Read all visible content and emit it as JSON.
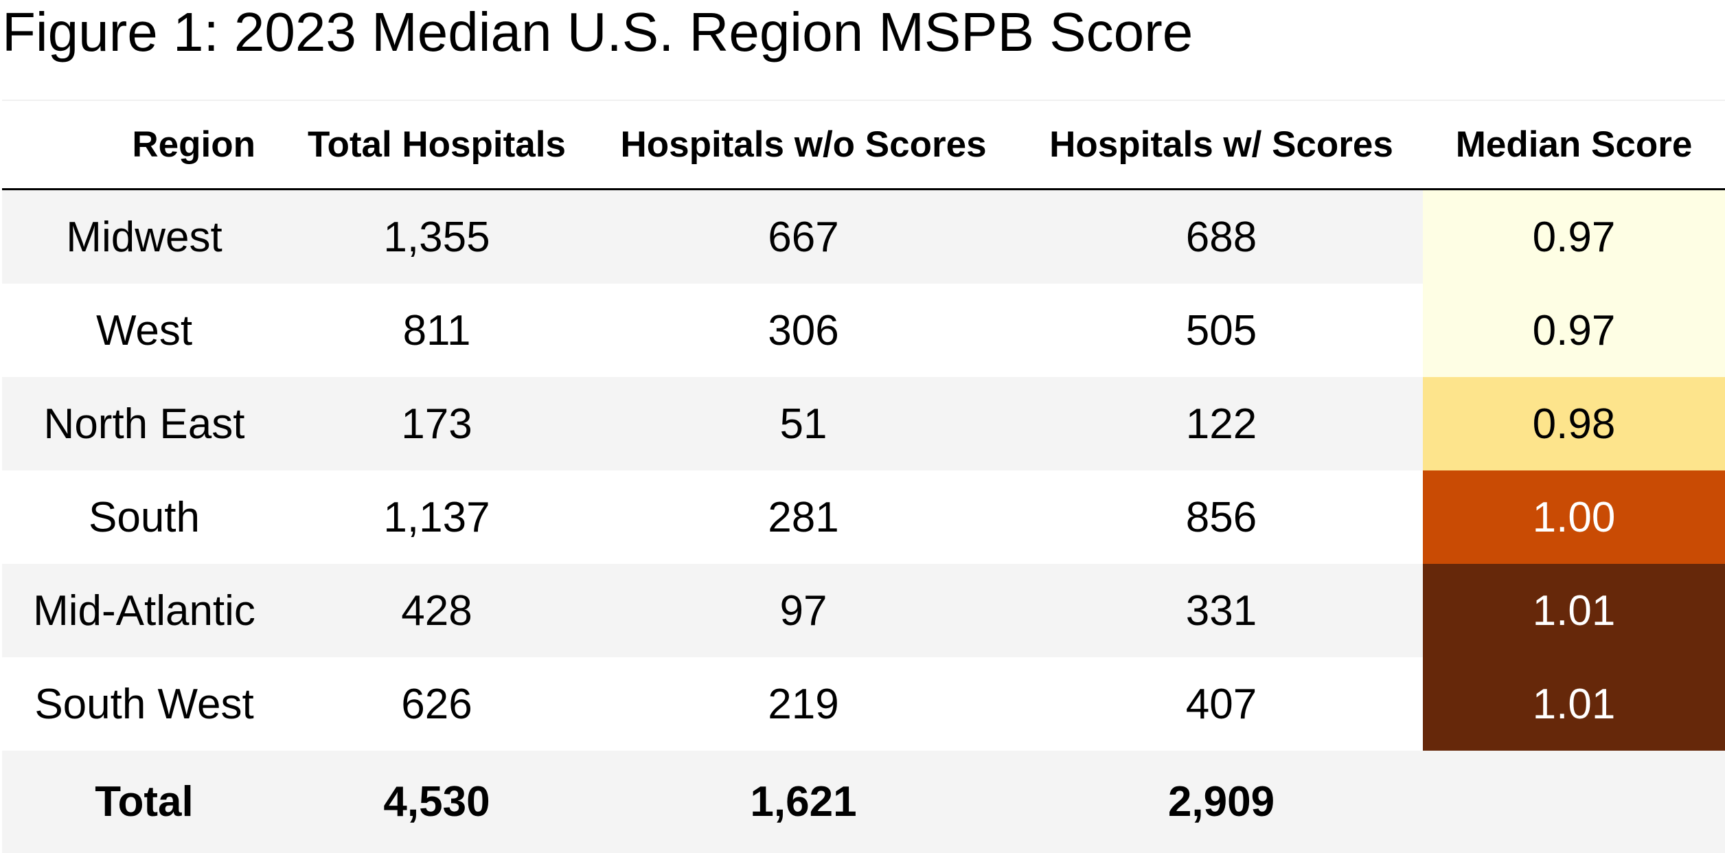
{
  "title": "Figure 1: 2023 Median U.S. Region MSPB Score",
  "chart_data": {
    "type": "table",
    "title": "Figure 1: 2023 Median U.S. Region MSPB Score",
    "columns": [
      "Region",
      "Total Hospitals",
      "Hospitals w/o Scores",
      "Hospitals w/ Scores",
      "Median Score"
    ],
    "rows": [
      {
        "region": "Midwest",
        "total": "1,355",
        "without": "667",
        "with": "688",
        "median": "0.97",
        "fill": "#fefee4",
        "text": "#000000"
      },
      {
        "region": "West",
        "total": "811",
        "without": "306",
        "with": "505",
        "median": "0.97",
        "fill": "#fefee4",
        "text": "#000000"
      },
      {
        "region": "North East",
        "total": "173",
        "without": "51",
        "with": "122",
        "median": "0.98",
        "fill": "#fde48c",
        "text": "#000000"
      },
      {
        "region": "South",
        "total": "1,137",
        "without": "281",
        "with": "856",
        "median": "1.00",
        "fill": "#c94b04",
        "text": "#ffffff"
      },
      {
        "region": "Mid-Atlantic",
        "total": "428",
        "without": "97",
        "with": "331",
        "median": "1.01",
        "fill": "#66280a",
        "text": "#ffffff"
      },
      {
        "region": "South West",
        "total": "626",
        "without": "219",
        "with": "407",
        "median": "1.01",
        "fill": "#66280a",
        "text": "#ffffff"
      }
    ],
    "totals": {
      "label": "Total",
      "total": "4,530",
      "without": "1,621",
      "with": "2,909",
      "median": ""
    }
  }
}
